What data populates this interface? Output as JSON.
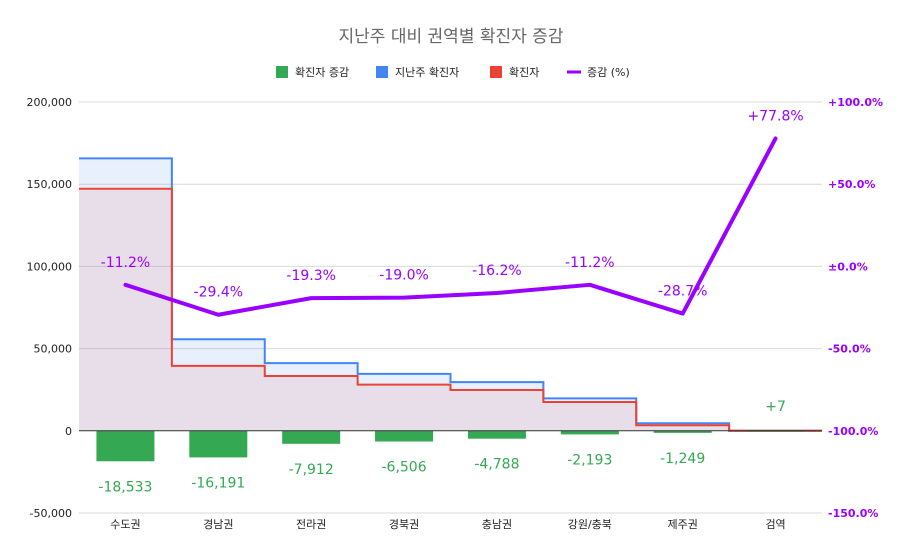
{
  "chart_data": {
    "type": "combo",
    "title": "지난주 대비 권역별 확진자 증감",
    "legend": {
      "position": "top",
      "entries": [
        {
          "name": "확진자 증감",
          "color": "#34a853"
        },
        {
          "name": "지난주 확진자",
          "color": "#4285f4"
        },
        {
          "name": "확진자",
          "color": "#ea4335"
        },
        {
          "name": "증감 (%)",
          "color": "#9900ff"
        }
      ]
    },
    "categories": [
      "수도권",
      "경남권",
      "전라권",
      "경북권",
      "충남권",
      "강원/충북",
      "제주권",
      "검역"
    ],
    "left_axis": {
      "ylim": [
        -50000,
        200000
      ],
      "ticks": [
        -50000,
        0,
        50000,
        100000,
        150000,
        200000
      ],
      "tick_labels": [
        "-50,000",
        "0",
        "50,000",
        "100,000",
        "150,000",
        "200,000"
      ]
    },
    "right_axis": {
      "ylim": [
        -150,
        100
      ],
      "ticks": [
        -150,
        -100,
        -50,
        0,
        50,
        100
      ],
      "tick_labels": [
        "-150.0%",
        "-100.0%",
        "-50.0%",
        "±0.0%",
        "+50.0%",
        "+100.0%"
      ]
    },
    "series": [
      {
        "name": "확진자 증감",
        "type": "bar",
        "axis": "left",
        "color": "#34a853",
        "values": [
          -18533,
          -16191,
          -7912,
          -6506,
          -4788,
          -2193,
          -1249,
          7
        ],
        "labels": [
          "-18,533",
          "-16,191",
          "-7,912",
          "-6,506",
          "-4,788",
          "-2,193",
          "-1,249",
          "+7"
        ]
      },
      {
        "name": "지난주 확진자",
        "type": "stepped-area",
        "axis": "left",
        "color": "#4285f4",
        "values": [
          165700,
          55700,
          41200,
          34600,
          29600,
          19700,
          4600,
          0
        ]
      },
      {
        "name": "확진자",
        "type": "stepped-area",
        "axis": "left",
        "color": "#ea4335",
        "values": [
          147200,
          39500,
          33300,
          28100,
          24800,
          17500,
          3400,
          0
        ]
      },
      {
        "name": "증감 (%)",
        "type": "line",
        "axis": "right",
        "color": "#9900ff",
        "values": [
          -11.2,
          -29.4,
          -19.3,
          -19.0,
          -16.2,
          -11.2,
          -28.7,
          77.8
        ],
        "labels": [
          "-11.2%",
          "-29.4%",
          "-19.3%",
          "-19.0%",
          "-16.2%",
          "-11.2%",
          "-28.7%",
          "+77.8%"
        ]
      }
    ],
    "grid": true
  }
}
